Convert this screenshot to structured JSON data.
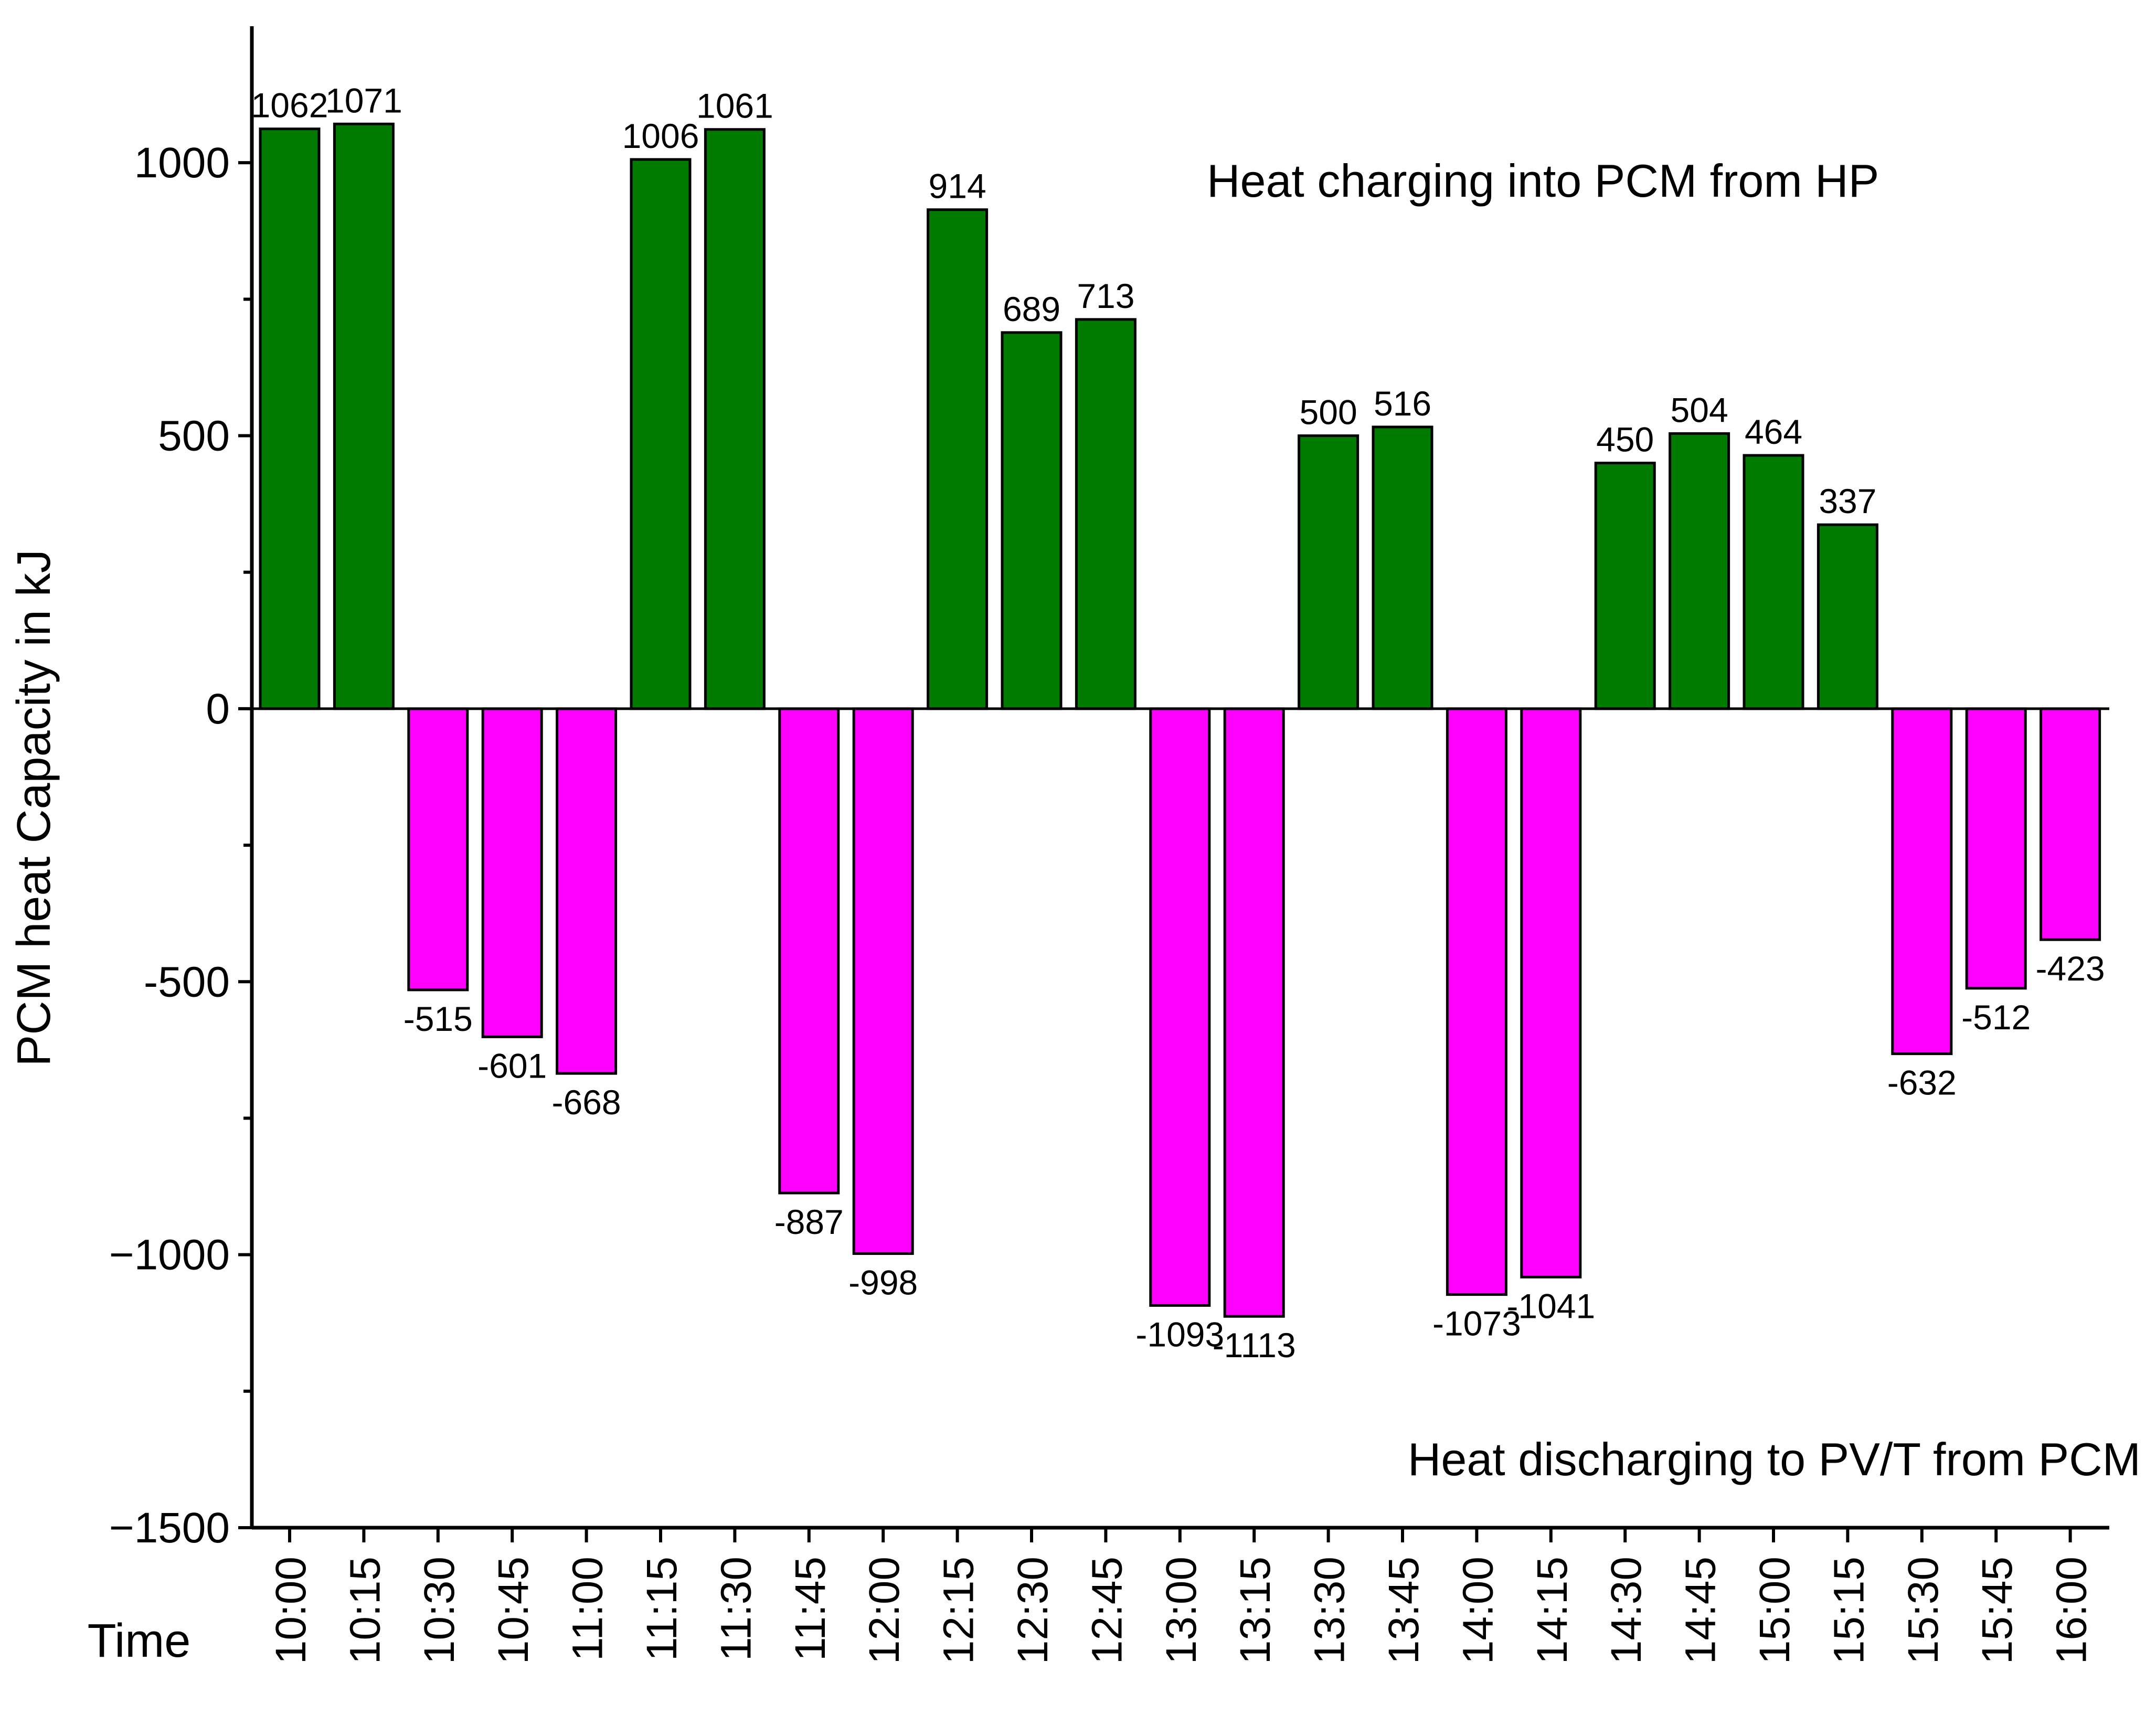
{
  "chart_data": {
    "type": "bar",
    "title": "",
    "xlabel": "Time",
    "ylabel": "PCM heat Capacity in kJ",
    "ylim": [
      -1500,
      1250
    ],
    "yticks": [
      -1500,
      -1000,
      -500,
      0,
      500,
      1000
    ],
    "ytick_labels": [
      "−1500",
      "−1000",
      "-500",
      "0",
      "500",
      "1000"
    ],
    "categories": [
      "10:00",
      "10:15",
      "10:30",
      "10:45",
      "11:00",
      "11:15",
      "11:30",
      "11:45",
      "12:00",
      "12:15",
      "12:30",
      "12:45",
      "13:00",
      "13:15",
      "13:30",
      "13:45",
      "14:00",
      "14:15",
      "14:30",
      "14:45",
      "15:00",
      "15:15",
      "15:30",
      "15:45",
      "16:00"
    ],
    "values": [
      1062,
      1071,
      -515,
      -601,
      -668,
      1006,
      1061,
      -887,
      -998,
      914,
      689,
      713,
      -1093,
      -1113,
      500,
      516,
      -1073,
      -1041,
      450,
      504,
      464,
      337,
      -632,
      -512,
      -423
    ],
    "colors": {
      "positive": "#007b00",
      "negative": "#ff00ff",
      "outline": "#000000"
    },
    "annotations": {
      "charging": "Heat charging into PCM from HP",
      "discharging": "Heat discharging to PV/T from PCM"
    }
  }
}
